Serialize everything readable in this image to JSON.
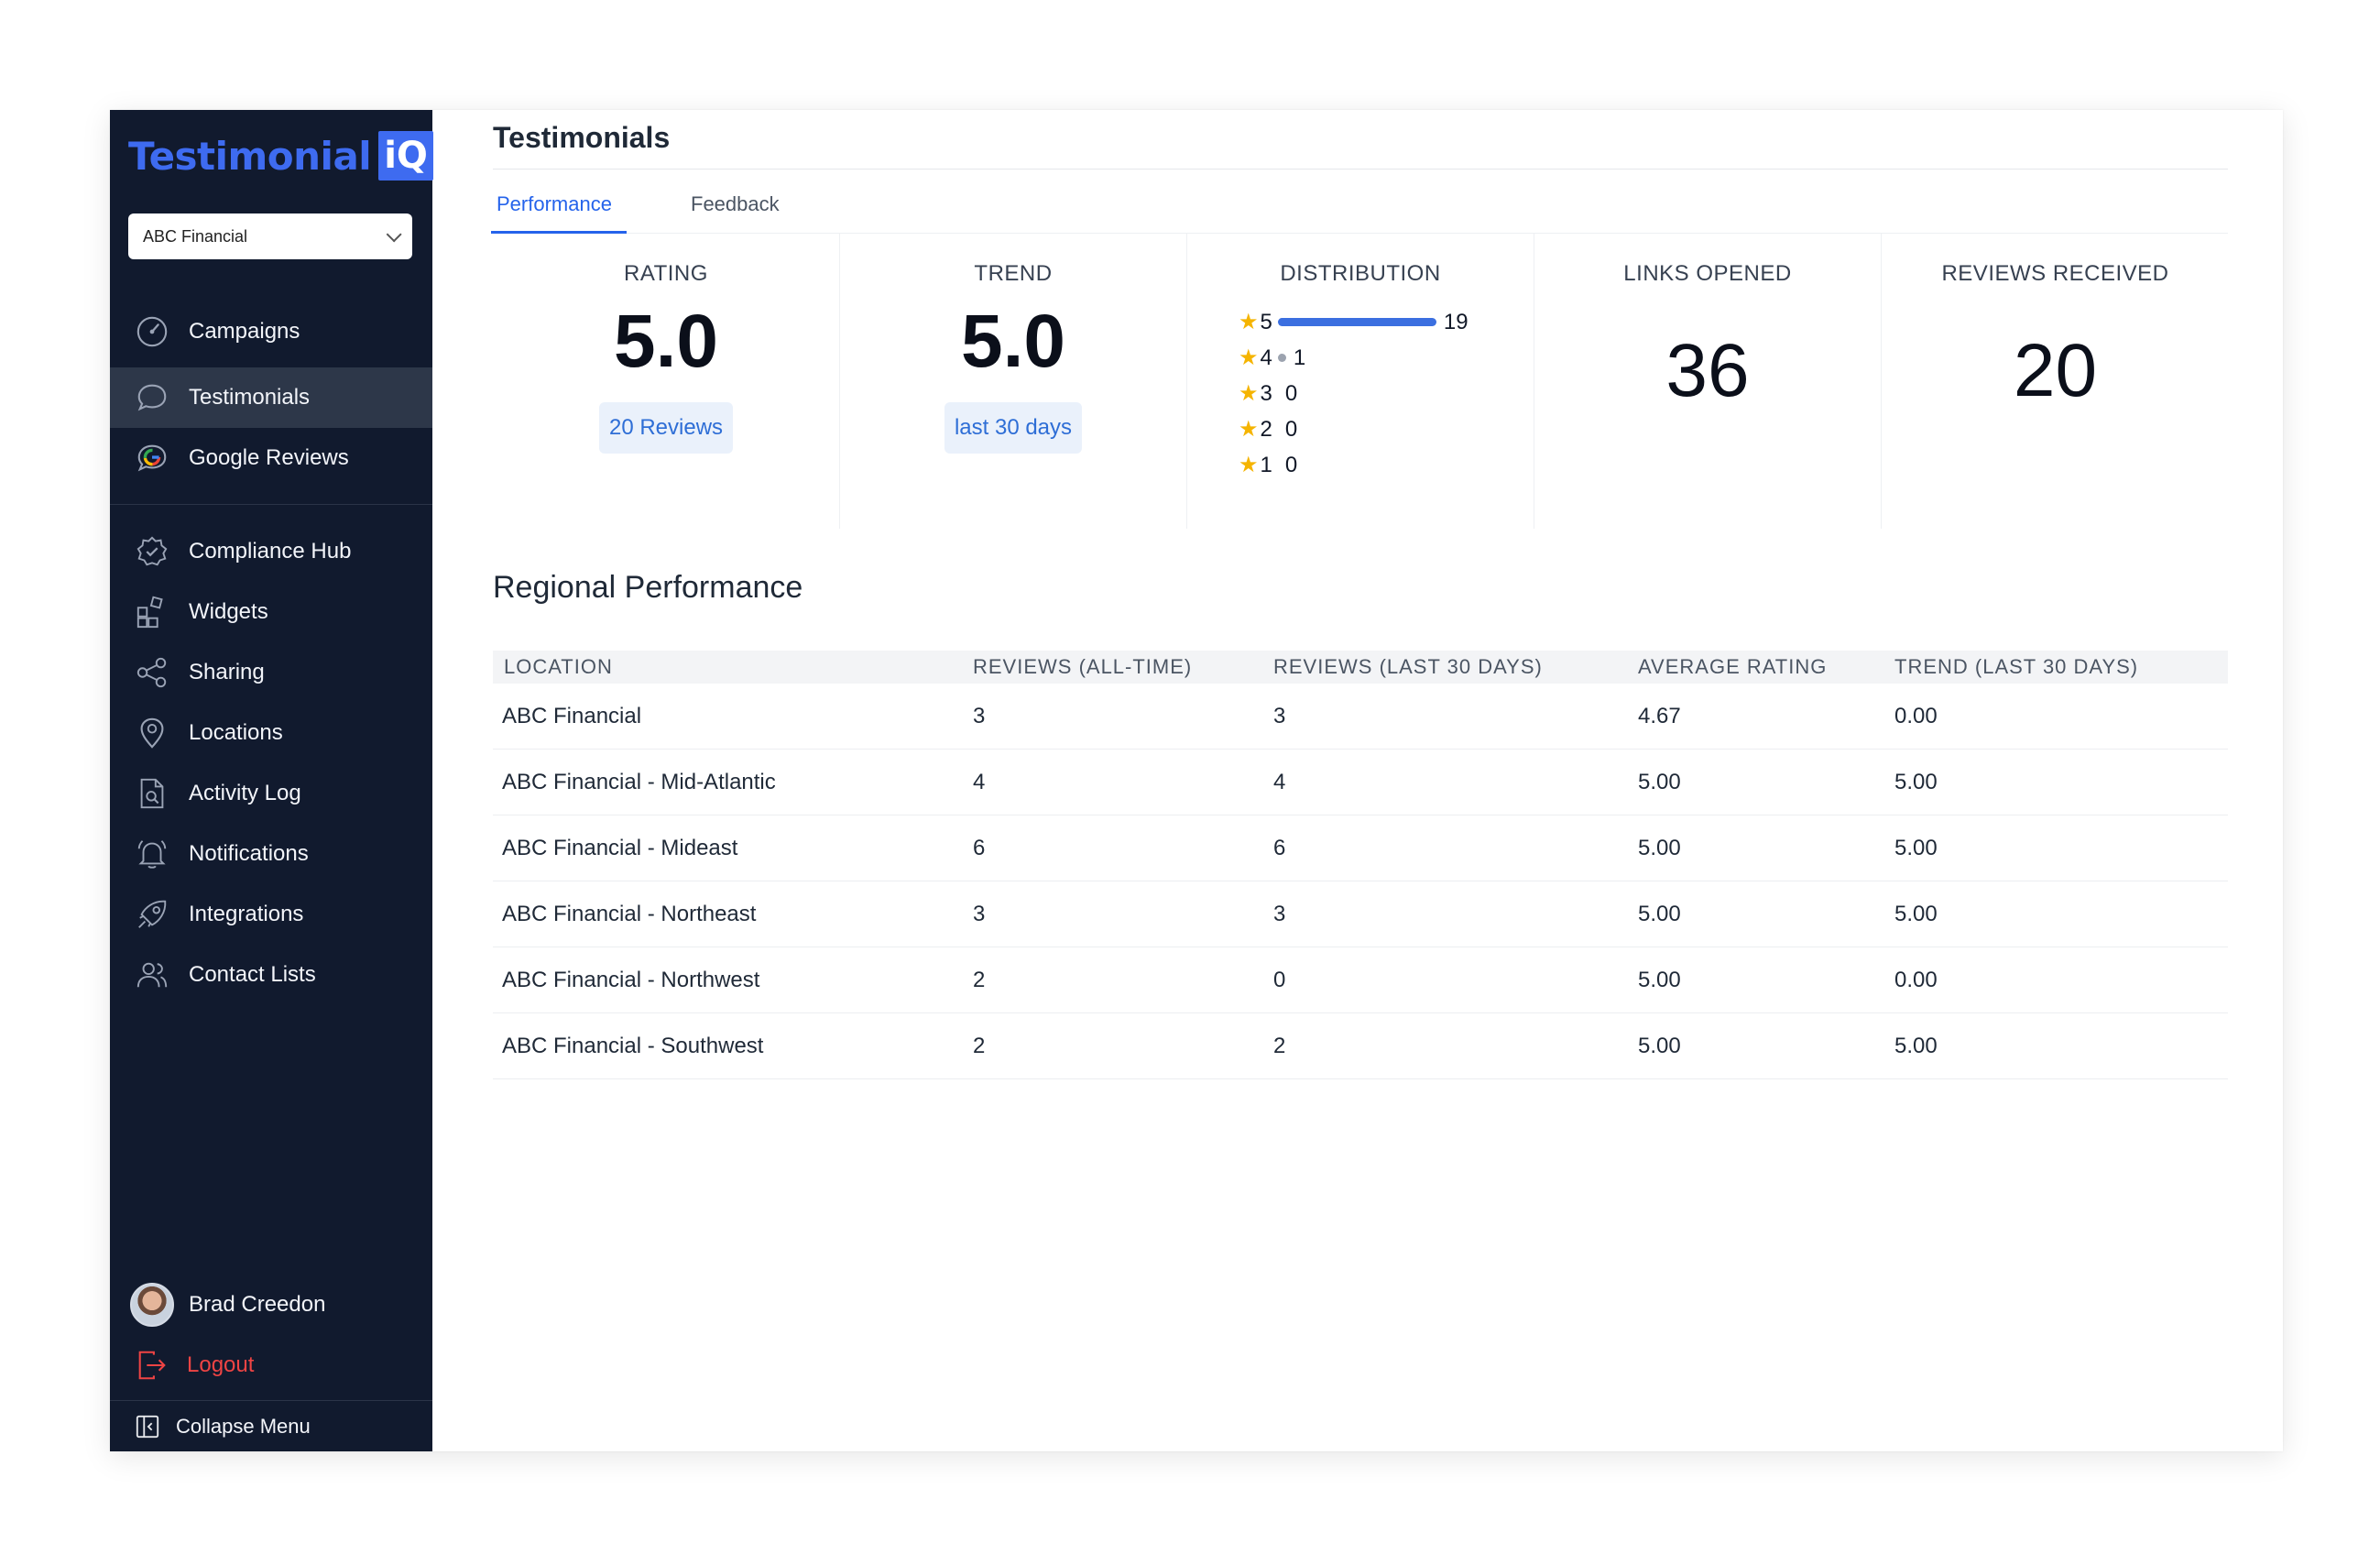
{
  "app": {
    "logo_text": "Testimonial",
    "logo_badge": "iQ",
    "brand_color": "#3e6bf0",
    "sidebar_bg": "#111a2e"
  },
  "account_select": {
    "value": "ABC Financial"
  },
  "sidebar": {
    "primary": [
      {
        "label": "Campaigns",
        "icon": "gauge-icon",
        "active": false
      },
      {
        "label": "Testimonials",
        "icon": "chat-bubble-icon",
        "active": true
      },
      {
        "label": "Google Reviews",
        "icon": "google-icon",
        "active": false
      }
    ],
    "secondary": [
      {
        "label": "Compliance Hub",
        "icon": "shield-check-icon"
      },
      {
        "label": "Widgets",
        "icon": "widgets-icon"
      },
      {
        "label": "Sharing",
        "icon": "share-icon"
      },
      {
        "label": "Locations",
        "icon": "map-pin-icon"
      },
      {
        "label": "Activity Log",
        "icon": "document-search-icon"
      },
      {
        "label": "Notifications",
        "icon": "bell-icon"
      },
      {
        "label": "Integrations",
        "icon": "rocket-icon"
      },
      {
        "label": "Contact Lists",
        "icon": "users-icon"
      }
    ],
    "user_name": "Brad Creedon",
    "logout_label": "Logout",
    "collapse_label": "Collapse Menu"
  },
  "header": {
    "title": "Testimonials",
    "tabs": [
      {
        "label": "Performance",
        "active": true
      },
      {
        "label": "Feedback",
        "active": false
      }
    ]
  },
  "stats": {
    "rating": {
      "label": "RATING",
      "value": "5.0",
      "pill": "20 Reviews"
    },
    "trend": {
      "label": "TREND",
      "value": "5.0",
      "pill": "last 30 days"
    },
    "distribution": {
      "label": "DISTRIBUTION",
      "rows": [
        {
          "stars": "5",
          "count": "19",
          "fraction": 0.95
        },
        {
          "stars": "4",
          "count": "1",
          "fraction": 0.05
        },
        {
          "stars": "3",
          "count": "0",
          "fraction": 0
        },
        {
          "stars": "2",
          "count": "0",
          "fraction": 0
        },
        {
          "stars": "1",
          "count": "0",
          "fraction": 0
        }
      ]
    },
    "links_opened": {
      "label": "LINKS OPENED",
      "value": "36"
    },
    "reviews_received": {
      "label": "REVIEWS RECEIVED",
      "value": "20"
    }
  },
  "regional": {
    "title": "Regional Performance",
    "columns": [
      "LOCATION",
      "REVIEWS (ALL-TIME)",
      "REVIEWS (LAST 30 DAYS)",
      "AVERAGE RATING",
      "TREND (LAST 30 DAYS)"
    ],
    "rows": [
      [
        "ABC Financial",
        "3",
        "3",
        "4.67",
        "0.00"
      ],
      [
        "ABC Financial - Mid-Atlantic",
        "4",
        "4",
        "5.00",
        "5.00"
      ],
      [
        "ABC Financial - Mideast",
        "6",
        "6",
        "5.00",
        "5.00"
      ],
      [
        "ABC Financial - Northeast",
        "3",
        "3",
        "5.00",
        "5.00"
      ],
      [
        "ABC Financial - Northwest",
        "2",
        "0",
        "5.00",
        "0.00"
      ],
      [
        "ABC Financial - Southwest",
        "2",
        "2",
        "5.00",
        "5.00"
      ]
    ]
  }
}
